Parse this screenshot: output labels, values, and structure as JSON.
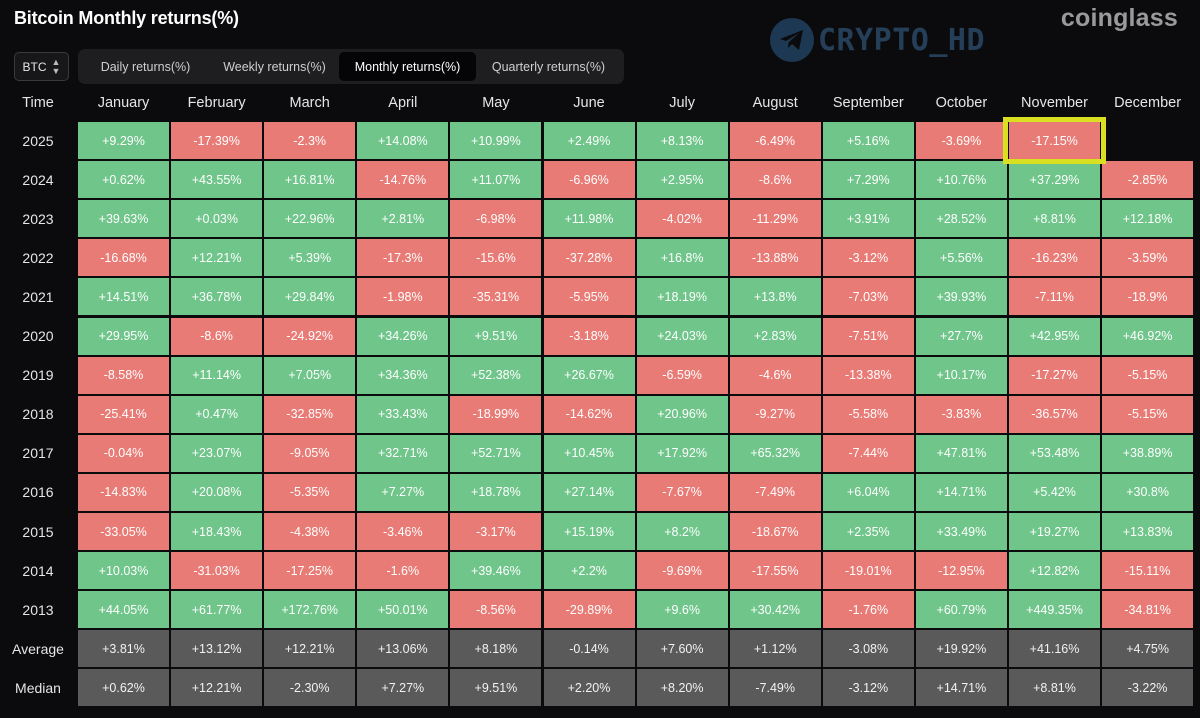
{
  "header": {
    "title": "Bitcoin Monthly returns(%)",
    "brand": "coinglass",
    "watermark": "CRYPTO_HD"
  },
  "controls": {
    "asset": "BTC",
    "tabs": [
      {
        "label": "Daily returns(%)",
        "active": false
      },
      {
        "label": "Weekly returns(%)",
        "active": false
      },
      {
        "label": "Monthly returns(%)",
        "active": true
      },
      {
        "label": "Quarterly returns(%)",
        "active": false
      }
    ]
  },
  "colors": {
    "positive": "#6fc58a",
    "negative": "#e97b76",
    "stat": "#5a5a5a",
    "highlight": "#d9e021"
  },
  "chart_data": {
    "type": "table",
    "title": "Bitcoin Monthly returns(%)",
    "corner_label": "Time",
    "columns": [
      "January",
      "February",
      "March",
      "April",
      "May",
      "June",
      "July",
      "August",
      "September",
      "October",
      "November",
      "December"
    ],
    "rows": [
      {
        "label": "2025",
        "values": [
          "+9.29%",
          "-17.39%",
          "-2.3%",
          "+14.08%",
          "+10.99%",
          "+2.49%",
          "+8.13%",
          "-6.49%",
          "+5.16%",
          "-3.69%",
          "-17.15%",
          ""
        ]
      },
      {
        "label": "2024",
        "values": [
          "+0.62%",
          "+43.55%",
          "+16.81%",
          "-14.76%",
          "+11.07%",
          "-6.96%",
          "+2.95%",
          "-8.6%",
          "+7.29%",
          "+10.76%",
          "+37.29%",
          "-2.85%"
        ]
      },
      {
        "label": "2023",
        "values": [
          "+39.63%",
          "+0.03%",
          "+22.96%",
          "+2.81%",
          "-6.98%",
          "+11.98%",
          "-4.02%",
          "-11.29%",
          "+3.91%",
          "+28.52%",
          "+8.81%",
          "+12.18%"
        ]
      },
      {
        "label": "2022",
        "values": [
          "-16.68%",
          "+12.21%",
          "+5.39%",
          "-17.3%",
          "-15.6%",
          "-37.28%",
          "+16.8%",
          "-13.88%",
          "-3.12%",
          "+5.56%",
          "-16.23%",
          "-3.59%"
        ]
      },
      {
        "label": "2021",
        "values": [
          "+14.51%",
          "+36.78%",
          "+29.84%",
          "-1.98%",
          "-35.31%",
          "-5.95%",
          "+18.19%",
          "+13.8%",
          "-7.03%",
          "+39.93%",
          "-7.11%",
          "-18.9%"
        ]
      },
      {
        "label": "2020",
        "values": [
          "+29.95%",
          "-8.6%",
          "-24.92%",
          "+34.26%",
          "+9.51%",
          "-3.18%",
          "+24.03%",
          "+2.83%",
          "-7.51%",
          "+27.7%",
          "+42.95%",
          "+46.92%"
        ]
      },
      {
        "label": "2019",
        "values": [
          "-8.58%",
          "+11.14%",
          "+7.05%",
          "+34.36%",
          "+52.38%",
          "+26.67%",
          "-6.59%",
          "-4.6%",
          "-13.38%",
          "+10.17%",
          "-17.27%",
          "-5.15%"
        ]
      },
      {
        "label": "2018",
        "values": [
          "-25.41%",
          "+0.47%",
          "-32.85%",
          "+33.43%",
          "-18.99%",
          "-14.62%",
          "+20.96%",
          "-9.27%",
          "-5.58%",
          "-3.83%",
          "-36.57%",
          "-5.15%"
        ]
      },
      {
        "label": "2017",
        "values": [
          "-0.04%",
          "+23.07%",
          "-9.05%",
          "+32.71%",
          "+52.71%",
          "+10.45%",
          "+17.92%",
          "+65.32%",
          "-7.44%",
          "+47.81%",
          "+53.48%",
          "+38.89%"
        ]
      },
      {
        "label": "2016",
        "values": [
          "-14.83%",
          "+20.08%",
          "-5.35%",
          "+7.27%",
          "+18.78%",
          "+27.14%",
          "-7.67%",
          "-7.49%",
          "+6.04%",
          "+14.71%",
          "+5.42%",
          "+30.8%"
        ]
      },
      {
        "label": "2015",
        "values": [
          "-33.05%",
          "+18.43%",
          "-4.38%",
          "-3.46%",
          "-3.17%",
          "+15.19%",
          "+8.2%",
          "-18.67%",
          "+2.35%",
          "+33.49%",
          "+19.27%",
          "+13.83%"
        ]
      },
      {
        "label": "2014",
        "values": [
          "+10.03%",
          "-31.03%",
          "-17.25%",
          "-1.6%",
          "+39.46%",
          "+2.2%",
          "-9.69%",
          "-17.55%",
          "-19.01%",
          "-12.95%",
          "+12.82%",
          "-15.11%"
        ]
      },
      {
        "label": "2013",
        "values": [
          "+44.05%",
          "+61.77%",
          "+172.76%",
          "+50.01%",
          "-8.56%",
          "-29.89%",
          "+9.6%",
          "+30.42%",
          "-1.76%",
          "+60.79%",
          "+449.35%",
          "-34.81%"
        ]
      }
    ],
    "summary": [
      {
        "label": "Average",
        "values": [
          "+3.81%",
          "+13.12%",
          "+12.21%",
          "+13.06%",
          "+8.18%",
          "-0.14%",
          "+7.60%",
          "+1.12%",
          "-3.08%",
          "+19.92%",
          "+41.16%",
          "+4.75%"
        ]
      },
      {
        "label": "Median",
        "values": [
          "+0.62%",
          "+12.21%",
          "-2.30%",
          "+7.27%",
          "+9.51%",
          "+2.20%",
          "+8.20%",
          "-7.49%",
          "-3.12%",
          "+14.71%",
          "+8.81%",
          "-3.22%"
        ]
      }
    ],
    "highlighted_cell": {
      "row": "2025",
      "column": "November"
    }
  }
}
